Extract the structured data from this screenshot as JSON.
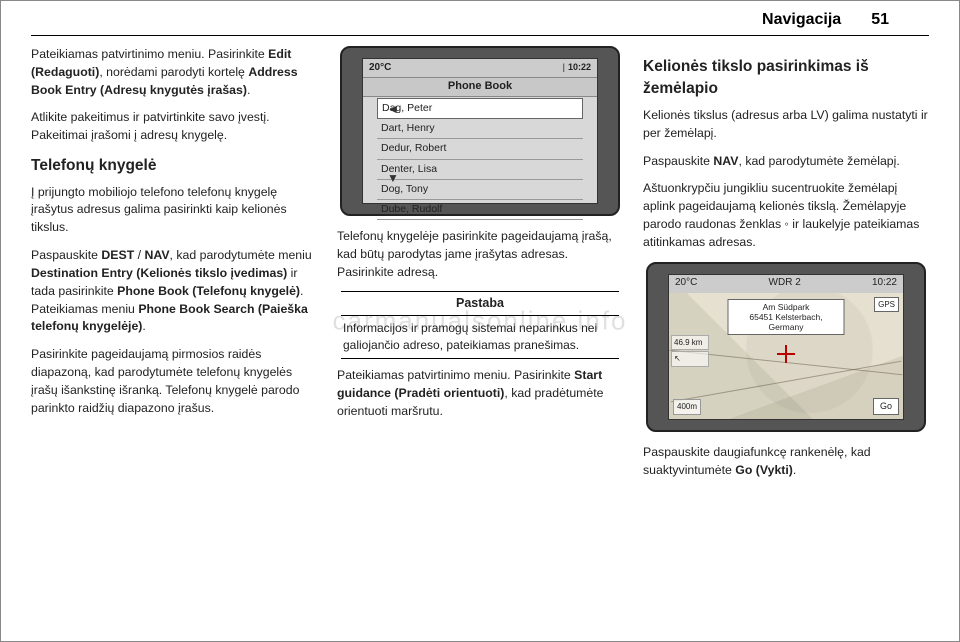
{
  "header": {
    "title": "Navigacija",
    "page": "51"
  },
  "watermark": "carmanualsonline.info",
  "col1": {
    "p1a": "Pateikiamas patvirtinimo meniu. Pasirinkite ",
    "p1b": "Edit (Redaguoti)",
    "p1c": ", norėdami parodyti kortelę ",
    "p1d": "Address Book Entry (Adresų knygutės įrašas)",
    "p1e": ".",
    "p2": "Atlikite pakeitimus ir patvirtinkite savo įvestį. Pakeitimai įrašomi į adresų knygelę.",
    "h3": "Telefonų knygelė",
    "p3": "Į prijungto mobiliojo telefono telefonų knygelę įrašytus adresus galima pasirinkti kaip kelionės tikslus.",
    "p4a": "Paspauskite ",
    "p4b": "DEST",
    "p4c": " / ",
    "p4d": "NAV",
    "p4e": ", kad parodytumėte meniu ",
    "p4f": "Destination Entry (Kelionės tikslo įvedimas)",
    "p4g": " ir tada pasirinkite ",
    "p4h": "Phone Book (Telefonų knygelė)",
    "p4i": ". Pateikiamas meniu ",
    "p4j": "Phone Book Search (Paieška telefonų knygelėje)",
    "p4k": ".",
    "p5": "Pasirinkite pageidaujamą pirmosios raidės diapazoną, kad parodytumėte telefonų knygelės įrašų išankstinę išranką. Telefonų knygelė parodo parinkto raidžių diapazono įrašus."
  },
  "col2": {
    "screen": {
      "temp": "20°C",
      "time": "10:22",
      "title": "Phone Book",
      "rows": [
        "Dag, Peter",
        "Dart, Henry",
        "Dedur, Robert",
        "Denter, Lisa",
        "Dog, Tony",
        "Dube, Rudolf"
      ]
    },
    "p1": "Telefonų knygelėje pasirinkite pageidaujamą įrašą, kad būtų parodytas jame įrašytas adresas. Pasirinkite adresą.",
    "note_label": "Pastaba",
    "note_text": "Informacijos ir pramogų sistemai neparinkus nei galiojančio adreso, pateikiamas pranešimas.",
    "p2a": "Pateikiamas patvirtinimo meniu. Pasirinkite ",
    "p2b": "Start guidance (Pradėti orientuoti)",
    "p2c": ", kad pradėtumėte orientuoti maršrutu."
  },
  "col3": {
    "h3": "Kelionės tikslo pasirinkimas iš žemėlapio",
    "p1": "Kelionės tikslus (adresus arba LV) galima nustatyti ir per žemėlapį.",
    "p2a": "Paspauskite ",
    "p2b": "NAV",
    "p2c": ", kad parodytumėte žemėlapį.",
    "p3": "Aštuonkrypčiu jungikliu sucentruokite žemėlapį aplink pageidaujamą kelionės tikslą. Žemėlapyje parodo raudonas ženklas ◦ ir laukelyje pateikiamas atitinkamas adresas.",
    "map": {
      "temp": "20°C",
      "wdr": "WDR 2",
      "time": "10:22",
      "addr1": "Am Südpark",
      "addr2": "65451 Kelsterbach, Germany",
      "gps": "GPS",
      "dist": "46.9 km",
      "scale": "400m",
      "go": "Go"
    },
    "p4a": "Paspauskite daugiafunkcę rankenėlę, kad suaktyvintumėte ",
    "p4b": "Go (Vykti)",
    "p4c": "."
  }
}
